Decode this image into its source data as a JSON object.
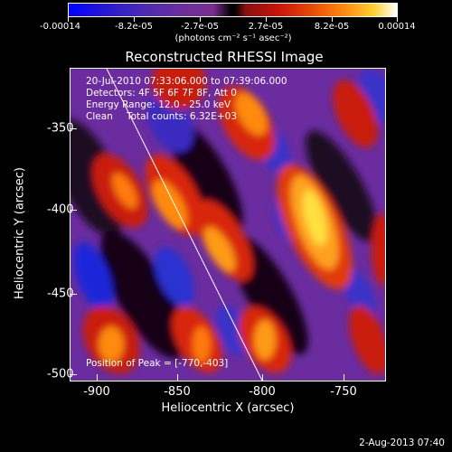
{
  "colorbar": {
    "labels": [
      "-0.00014",
      "-8.2e-05",
      "-2.7e-05",
      "2.7e-05",
      "8.2e-05",
      "0.00014"
    ],
    "units": "(photons cm⁻² s⁻¹ asec⁻²)",
    "low_color": "#0000ff",
    "mid_color": "#000000",
    "high_color": "#ffffff"
  },
  "image": {
    "title": "Reconstructed RHESSI Image",
    "line1": "20-Jul-2010 07:33:06.000 to 07:39:06.000",
    "line2": "Detectors: 4F 5F 6F 7F 8F, Att 0",
    "line3": "Energy Range: 12.0 - 25.0 keV",
    "line4_method": "Clean",
    "line4_counts": "Total counts: 6.32E+03",
    "peak": "Position of Peak = [-770,-403]"
  },
  "axes": {
    "xlabel": "Heliocentric X (arcsec)",
    "ylabel": "Heliocentric Y (arcsec)",
    "xticks": [
      "-900",
      "-850",
      "-800",
      "-750"
    ],
    "yticks": [
      "-350",
      "-400",
      "-450",
      "-500"
    ],
    "xrange": [
      -922,
      -726
    ],
    "yrange": [
      -326,
      -506
    ]
  },
  "footer": {
    "date": "2-Aug-2013 07:40"
  }
}
